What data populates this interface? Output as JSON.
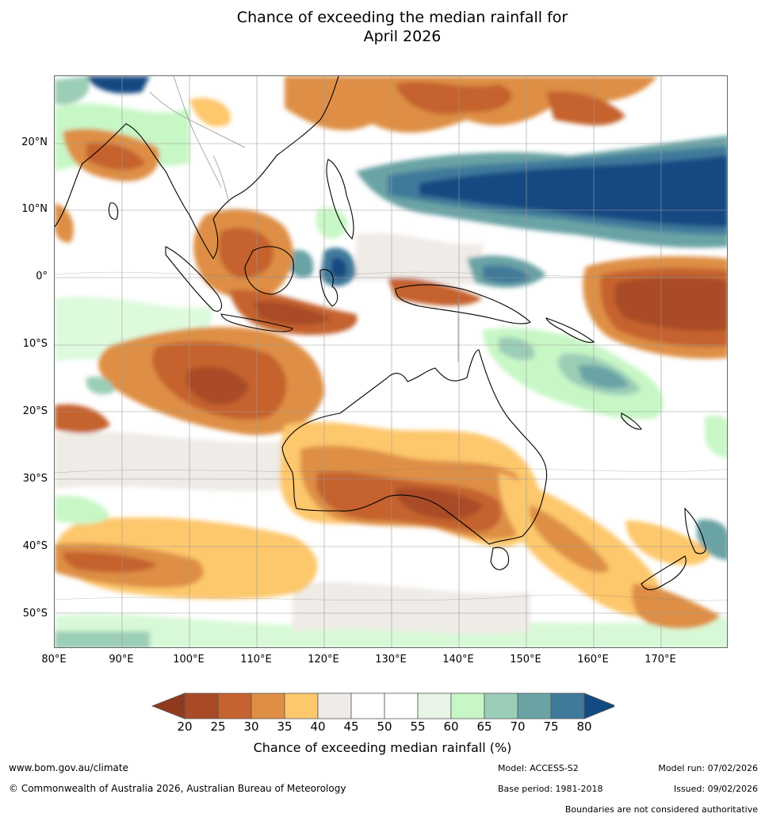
{
  "title_line1": "Chance of exceeding the median rainfall for",
  "title_line2": "April 2026",
  "map": {
    "name": "Chance of exceeding median rainfall map",
    "lat_labels": [
      "20°N",
      "10°N",
      "0°",
      "10°S",
      "20°S",
      "30°S",
      "40°S",
      "50°S"
    ],
    "lon_labels": [
      "80°E",
      "90°E",
      "100°E",
      "110°E",
      "120°E",
      "130°E",
      "140°E",
      "150°E",
      "160°E",
      "170°E"
    ]
  },
  "colorbar": {
    "ticks": [
      "20",
      "25",
      "30",
      "35",
      "40",
      "45",
      "50",
      "55",
      "60",
      "65",
      "70",
      "75",
      "80"
    ],
    "colors": [
      "#a84b26",
      "#c5622f",
      "#de8f45",
      "#fdc76c",
      "#efebe6",
      "#ffffff",
      "#ffffff",
      "#e8f4e6",
      "#c8f7c6",
      "#9bceb7",
      "#6ba3a5",
      "#3f7a9b"
    ],
    "under_color": "#8f3a1f",
    "over_color": "#124a82",
    "label": "Chance of exceeding median rainfall (%)"
  },
  "footer": {
    "website": "www.bom.gov.au/climate",
    "copyright": "© Commonwealth of Australia 2026, Australian Bureau of Meteorology",
    "model": "Model: ACCESS-S2",
    "model_run": "Model run: 07/02/2026",
    "base_period": "Base period: 1981-2018",
    "issued": "Issued: 09/02/2026",
    "disclaimer": "Boundaries are not considered authoritative"
  }
}
